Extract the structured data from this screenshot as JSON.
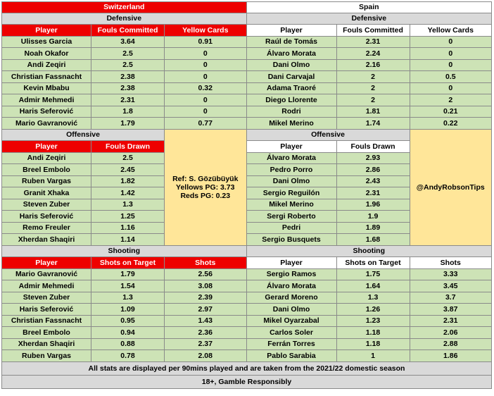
{
  "teams": {
    "left": "Switzerland",
    "right": "Spain"
  },
  "sections": {
    "defensive": "Defensive",
    "offensive": "Offensive",
    "shooting": "Shooting"
  },
  "headers": {
    "player": "Player",
    "fouls_committed": "Fouls Committed",
    "yellow_cards": "Yellow Cards",
    "fouls_drawn": "Fouls Drawn",
    "shots_on_target": "Shots on Target",
    "shots": "Shots"
  },
  "switzerland": {
    "defensive": [
      [
        "Ulisses Garcia",
        "3.64",
        "0.91"
      ],
      [
        "Noah Okafor",
        "2.5",
        "0"
      ],
      [
        "Andi Zeqiri",
        "2.5",
        "0"
      ],
      [
        "Christian Fassnacht",
        "2.38",
        "0"
      ],
      [
        "Kevin Mbabu",
        "2.38",
        "0.32"
      ],
      [
        "Admir Mehmedi",
        "2.31",
        "0"
      ],
      [
        "Haris Seferović",
        "1.8",
        "0"
      ],
      [
        "Mario Gavranović",
        "1.79",
        "0.77"
      ]
    ],
    "offensive": [
      [
        "Andi Zeqiri",
        "2.5"
      ],
      [
        "Breel Embolo",
        "2.45"
      ],
      [
        "Ruben Vargas",
        "1.82"
      ],
      [
        "Granit Xhaka",
        "1.42"
      ],
      [
        "Steven Zuber",
        "1.3"
      ],
      [
        "Haris Seferović",
        "1.25"
      ],
      [
        "Remo Freuler",
        "1.16"
      ],
      [
        "Xherdan Shaqiri",
        "1.14"
      ]
    ],
    "shooting": [
      [
        "Mario Gavranović",
        "1.79",
        "2.56"
      ],
      [
        "Admir Mehmedi",
        "1.54",
        "3.08"
      ],
      [
        "Steven Zuber",
        "1.3",
        "2.39"
      ],
      [
        "Haris Seferović",
        "1.09",
        "2.97"
      ],
      [
        "Christian Fassnacht",
        "0.95",
        "1.43"
      ],
      [
        "Breel Embolo",
        "0.94",
        "2.36"
      ],
      [
        "Xherdan Shaqiri",
        "0.88",
        "2.37"
      ],
      [
        "Ruben Vargas",
        "0.78",
        "2.08"
      ]
    ]
  },
  "spain": {
    "defensive": [
      [
        "Raúl de Tomás",
        "2.31",
        "0"
      ],
      [
        "Álvaro Morata",
        "2.24",
        "0"
      ],
      [
        "Dani Olmo",
        "2.16",
        "0"
      ],
      [
        "Dani Carvajal",
        "2",
        "0.5"
      ],
      [
        "Adama Traoré",
        "2",
        "0"
      ],
      [
        "Diego Llorente",
        "2",
        "2"
      ],
      [
        "Rodri",
        "1.81",
        "0.21"
      ],
      [
        "Mikel Merino",
        "1.74",
        "0.22"
      ]
    ],
    "offensive": [
      [
        "Álvaro Morata",
        "2.93"
      ],
      [
        "Pedro Porro",
        "2.86"
      ],
      [
        "Dani Olmo",
        "2.43"
      ],
      [
        "Sergio Reguilón",
        "2.31"
      ],
      [
        "Mikel Merino",
        "1.96"
      ],
      [
        "Sergi Roberto",
        "1.9"
      ],
      [
        "Pedri",
        "1.89"
      ],
      [
        "Sergio Busquets",
        "1.68"
      ]
    ],
    "shooting": [
      [
        "Sergio Ramos",
        "1.75",
        "3.33"
      ],
      [
        "Álvaro Morata",
        "1.64",
        "3.45"
      ],
      [
        "Gerard Moreno",
        "1.3",
        "3.7"
      ],
      [
        "Dani Olmo",
        "1.26",
        "3.87"
      ],
      [
        "Mikel Oyarzabal",
        "1.23",
        "2.31"
      ],
      [
        "Carlos Soler",
        "1.18",
        "2.06"
      ],
      [
        "Ferrán Torres",
        "1.18",
        "2.88"
      ],
      [
        "Pablo Sarabia",
        "1",
        "1.86"
      ]
    ]
  },
  "referee": {
    "name": "Ref: S. Gözübüyük",
    "yellows": "Yellows PG: 3.73",
    "reds": "Reds PG: 0.23"
  },
  "credit": "@AndyRobsonTips",
  "footer": {
    "note": "All stats are displayed per 90mins played and are taken from the 2021/22 domestic season",
    "disclaimer": "18+, Gamble Responsibly"
  }
}
